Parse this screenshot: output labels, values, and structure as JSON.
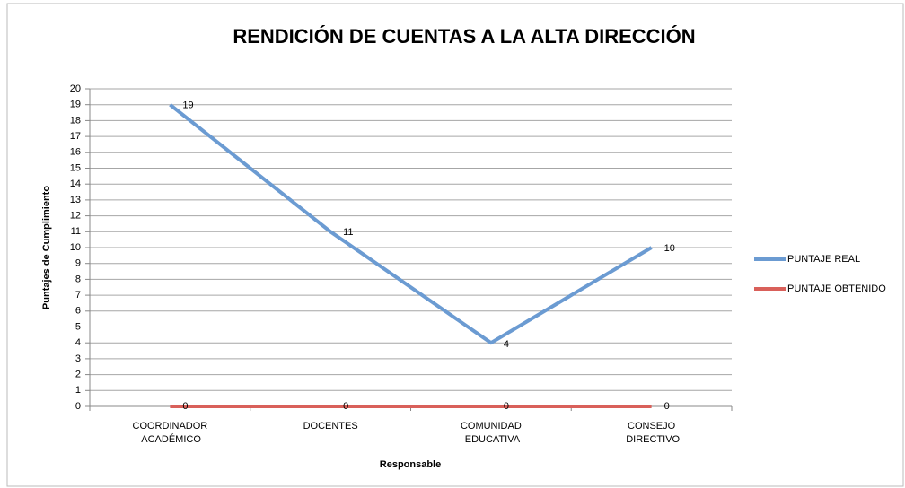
{
  "chart_data": {
    "type": "line",
    "title": "RENDICIÓN DE CUENTAS A LA ALTA DIRECCIÓN",
    "categories": [
      "COORDINADOR ACADÉMICO",
      "DOCENTES",
      "COMUNIDAD EDUCATIVA",
      "CONSEJO DIRECTIVO"
    ],
    "series": [
      {
        "name": "PUNTAJE REAL",
        "color": "#6b9bd2",
        "values": [
          19,
          11,
          4,
          10
        ]
      },
      {
        "name": "PUNTAJE OBTENIDO",
        "color": "#d9605a",
        "values": [
          0,
          0,
          0,
          0
        ]
      }
    ],
    "ylim": [
      0,
      20
    ],
    "yticks": [
      0,
      1,
      2,
      3,
      4,
      5,
      6,
      7,
      8,
      9,
      10,
      11,
      12,
      13,
      14,
      15,
      16,
      17,
      18,
      19,
      20
    ],
    "ylabel": "Puntajes de Cumplimiento",
    "xlabel": "Responsable",
    "grid": true,
    "legend": "right"
  }
}
